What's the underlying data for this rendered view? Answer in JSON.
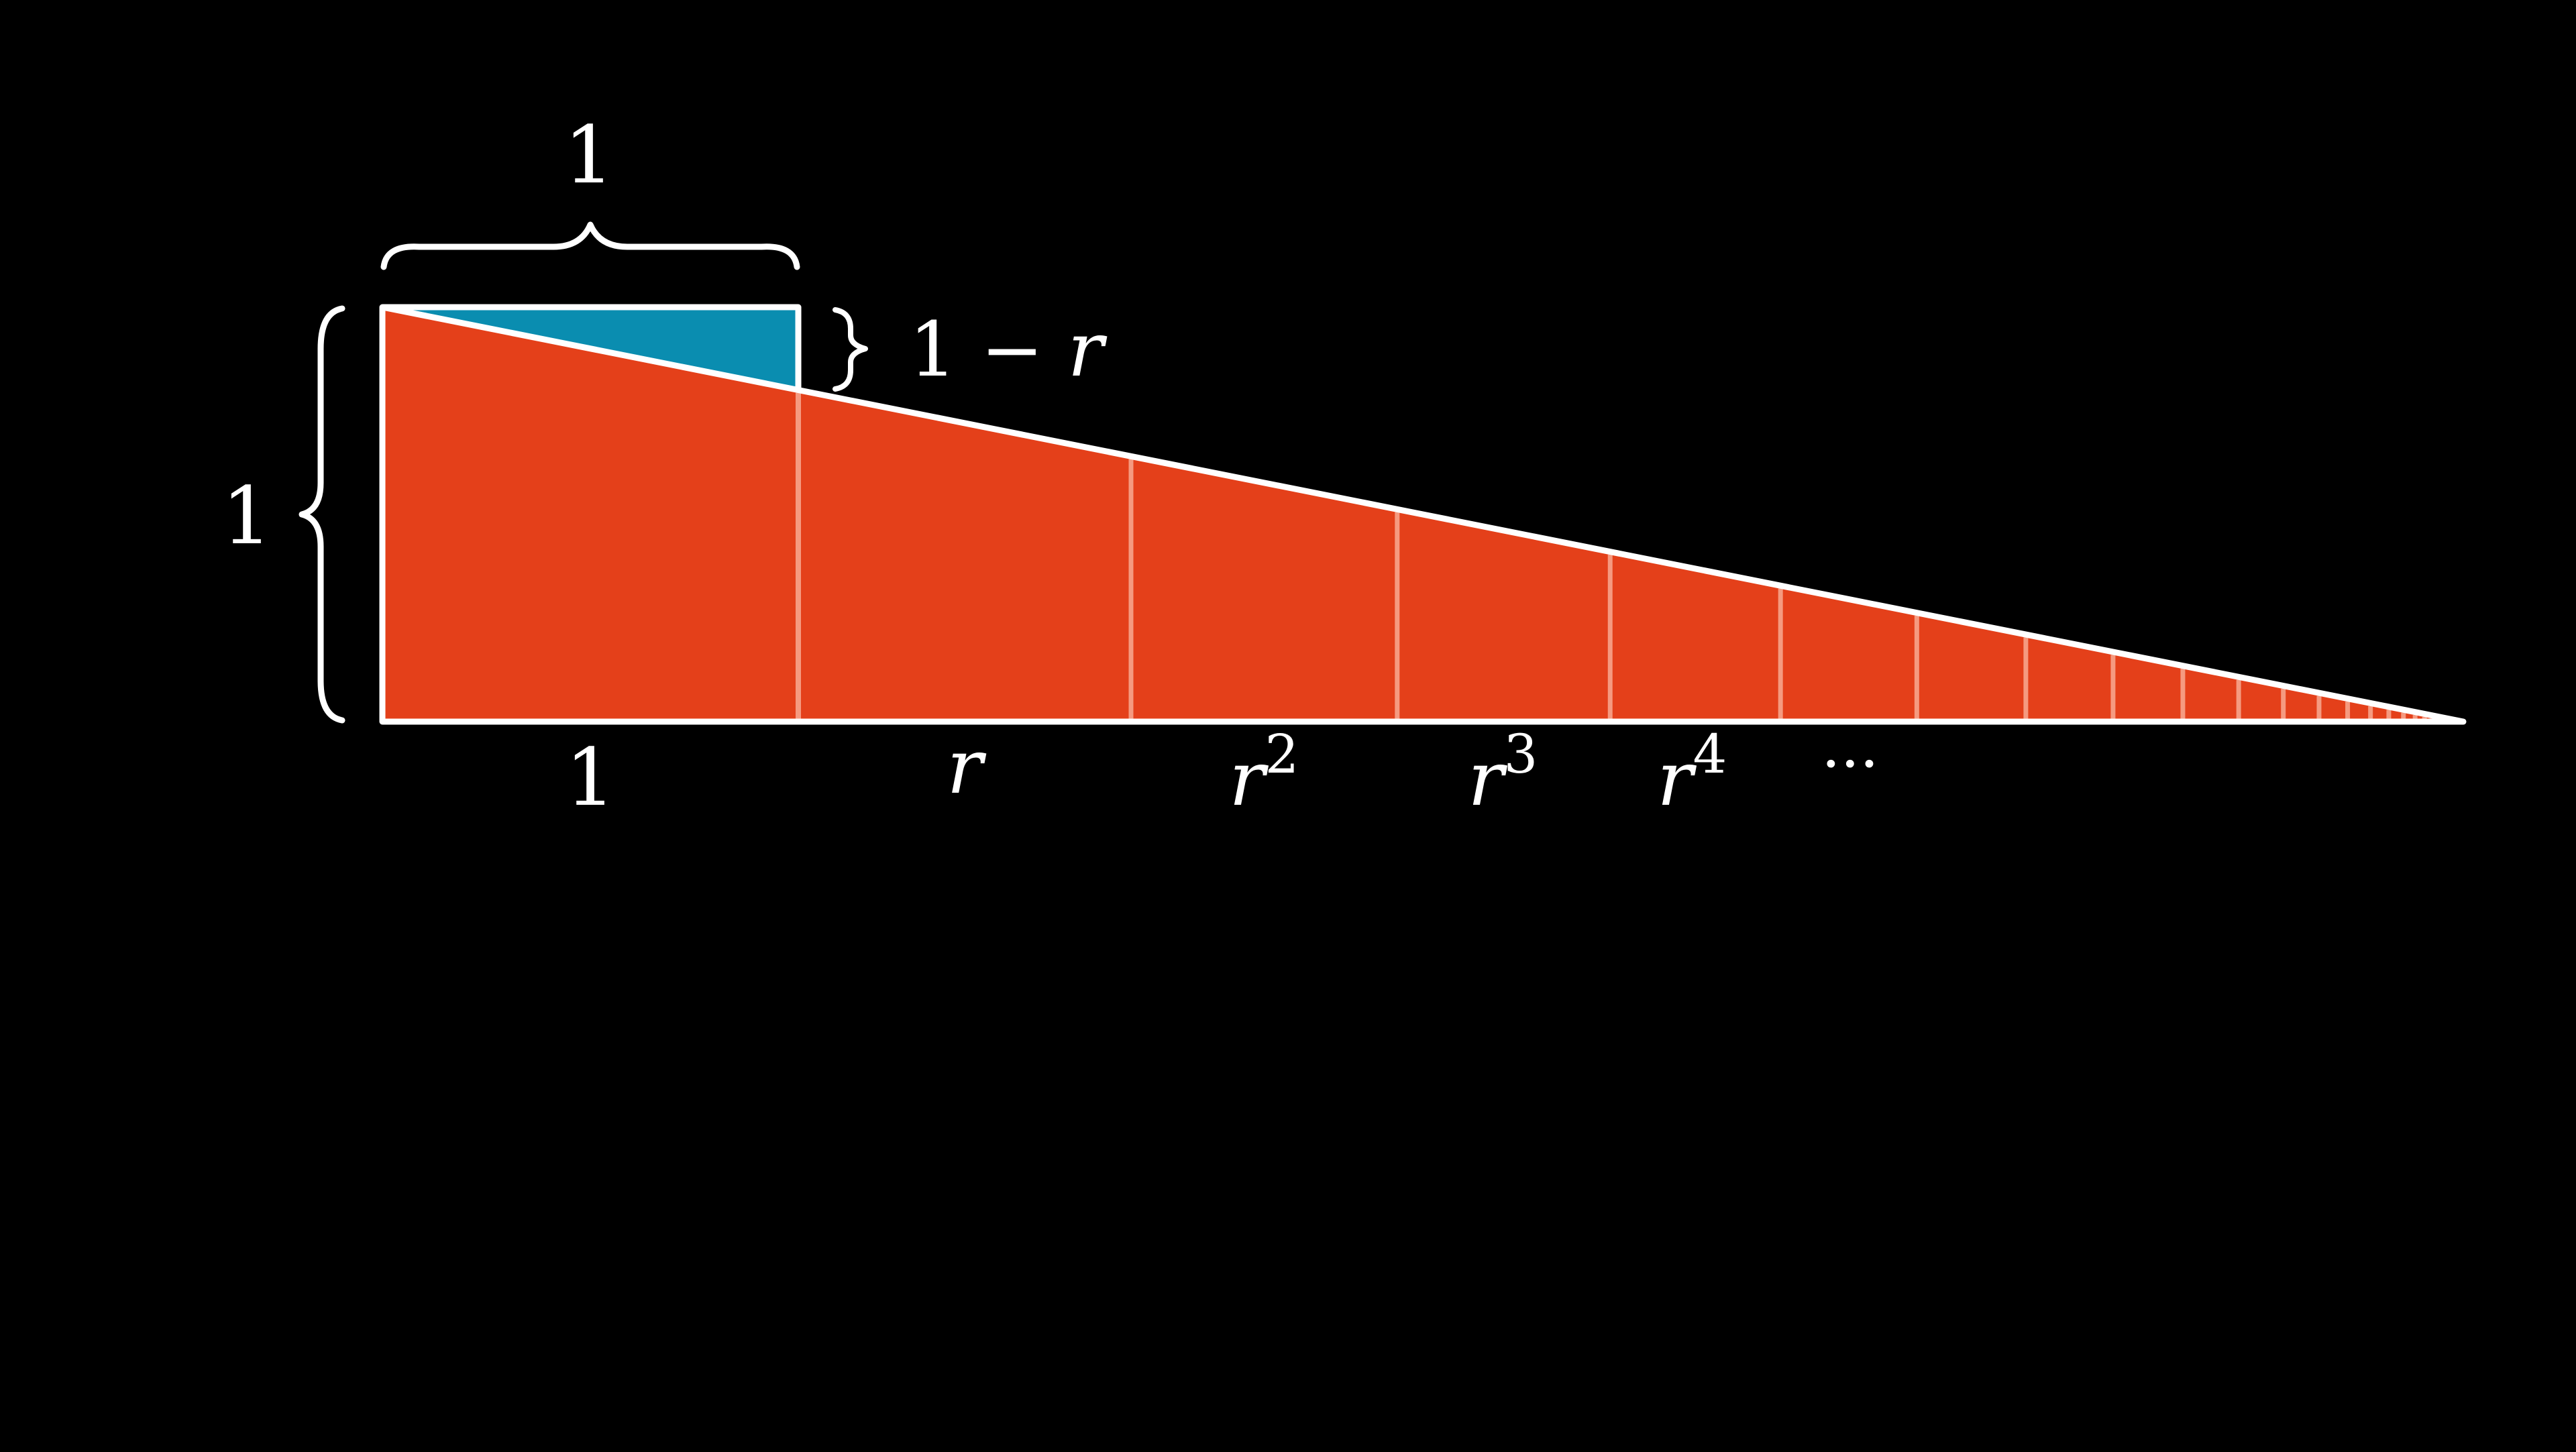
{
  "colors": {
    "background": "#000000",
    "triangle_fill": "#e4401a",
    "blue_fill": "#0a8db0",
    "outline": "#ffffff",
    "divider": "#f59a80"
  },
  "geometric_series": {
    "ratio": 0.8,
    "visible_terms": 24
  },
  "labels": {
    "top_width": "1",
    "left_height": "1",
    "gap": "1 − ",
    "gap_var": "r",
    "bottom_one": "1",
    "term_var": "r",
    "exp2": "2",
    "exp3": "3",
    "exp4": "4",
    "ellipsis": "···"
  }
}
